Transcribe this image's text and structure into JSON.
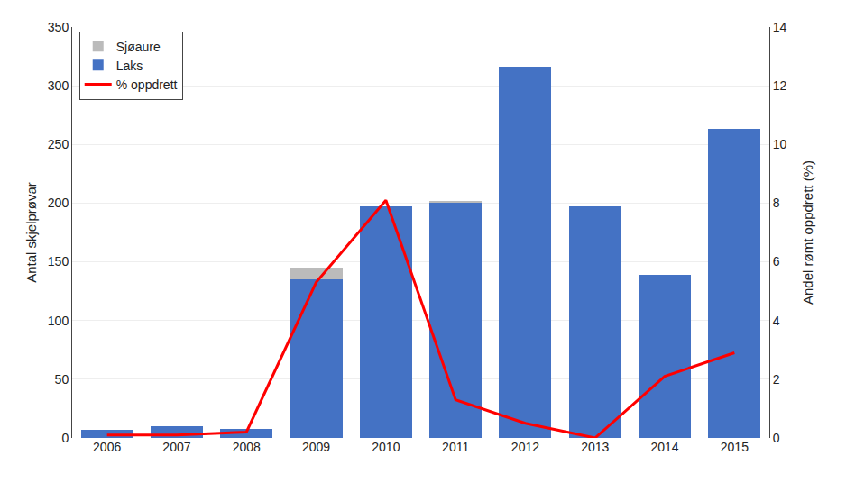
{
  "chart_data": {
    "type": "bar",
    "stacked": true,
    "categories": [
      "2006",
      "2007",
      "2008",
      "2009",
      "2010",
      "2011",
      "2012",
      "2013",
      "2014",
      "2015"
    ],
    "series": [
      {
        "name": "Laks",
        "color": "#4472C4",
        "values": [
          7,
          10,
          8,
          135,
          197,
          200,
          316,
          197,
          139,
          263
        ]
      },
      {
        "name": "Sjøaure",
        "color": "#BBBBBB",
        "values": [
          0,
          0,
          0,
          10,
          0,
          2,
          0,
          0,
          0,
          0
        ]
      },
      {
        "name": "% oppdrett",
        "type": "line",
        "axis": "y2",
        "color": "#FF0000",
        "values": [
          0.1,
          0.1,
          0.2,
          5.3,
          8.1,
          1.3,
          0.5,
          0.0,
          2.1,
          2.9
        ]
      }
    ],
    "ylabel": "Antal skjelprøvar",
    "y2label": "Andel rømt oppdrett (%)",
    "ylim": [
      0,
      350
    ],
    "yticks": [
      0,
      50,
      100,
      150,
      200,
      250,
      300,
      350
    ],
    "y2lim": [
      0,
      14
    ],
    "y2ticks": [
      0,
      2,
      4,
      6,
      8,
      10,
      12,
      14
    ],
    "grid": true,
    "legend": "upper left"
  }
}
